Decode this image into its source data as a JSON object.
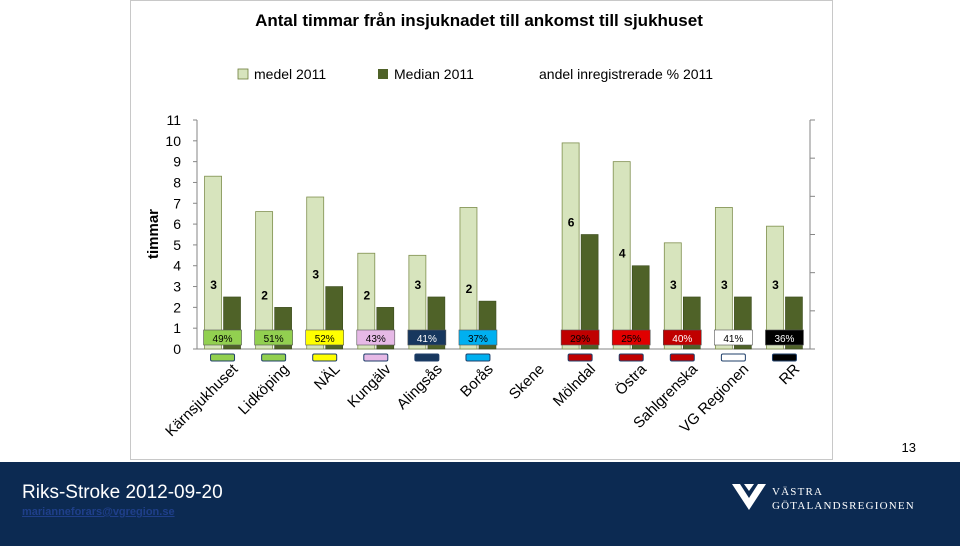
{
  "footer": {
    "title": "Riks-Stroke 2012-09-20",
    "email": "marianneforars@vgregion.se",
    "org_name_line1": "VÄSTRA",
    "org_name_line2": "GÖTALANDSREGIONEN"
  },
  "slide_number": "13",
  "chart_data": {
    "type": "bar",
    "title": "Antal timmar från insjuknadet till ankomst till sjukhuset",
    "ylabel": "timmar",
    "xlabel": "",
    "ylim": [
      0,
      11
    ],
    "yticks": [
      "0",
      "1",
      "2",
      "3",
      "4",
      "5",
      "6",
      "7",
      "8",
      "9",
      "10",
      "11"
    ],
    "grid": false,
    "legend_position": "top",
    "categories": [
      "Kärnsjukhuset",
      "Lidköping",
      "NÄL",
      "Kungälv",
      "Alingsås",
      "Borås",
      "Skene",
      "Mölndal",
      "Östra",
      "Sahlgrenska",
      "VG Regionen",
      "RR"
    ],
    "series": [
      {
        "name": "medel 2011",
        "color": "#d7e4bd",
        "values": [
          8.3,
          6.6,
          7.3,
          4.6,
          4.5,
          6.8,
          null,
          9.9,
          9.0,
          5.1,
          6.8,
          5.9
        ]
      },
      {
        "name": "Median 2011",
        "color": "#4f6228",
        "values": [
          2.5,
          2.0,
          3.0,
          2.0,
          2.5,
          2.3,
          null,
          5.5,
          4.0,
          2.5,
          2.5,
          2.5
        ],
        "labels": [
          "3",
          "2",
          "3",
          "2",
          "3",
          "2",
          "",
          "6",
          "4",
          "3",
          "3",
          "3"
        ]
      }
    ],
    "share_legend": "andel inregistrerade % 2011",
    "share_labels": [
      "49%",
      "51%",
      "52%",
      "43%",
      "41%",
      "37%",
      "",
      "29%",
      "25%",
      "40%",
      "41%",
      "36%"
    ],
    "share_box_colors": [
      "#92d050",
      "#92d050",
      "#ffff00",
      "#e6b9e6",
      "#17375e",
      "#00b0f0",
      "",
      "#c00000",
      "#e00000",
      "#c00000",
      "#ffffff",
      "#000000"
    ],
    "share_text_colors": [
      "#000000",
      "#000000",
      "#000000",
      "#000000",
      "#ffffff",
      "#000000",
      "",
      "#000000",
      "#000000",
      "#ffffff",
      "#000000",
      "#ffffff"
    ],
    "marker_colors": [
      "#92d050",
      "#92d050",
      "#ffff00",
      "#e6b9e6",
      "#17375e",
      "#00b0f0",
      "",
      "#c00000",
      "#c00000",
      "#c00000",
      "#ffffff",
      "#000000"
    ]
  }
}
